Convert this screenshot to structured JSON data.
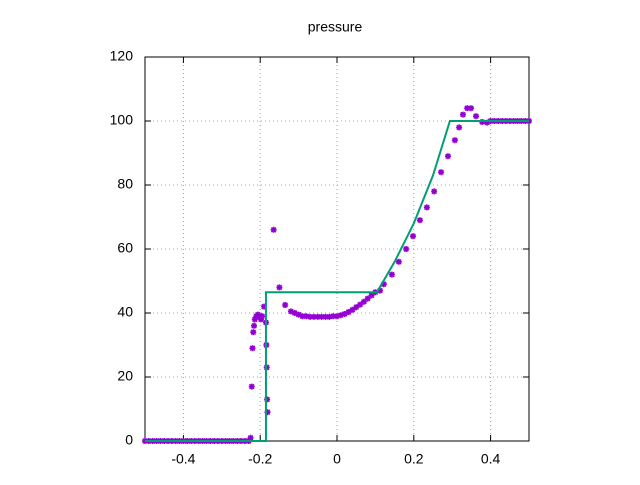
{
  "chart_data": {
    "type": "scatter",
    "title": "pressure",
    "xlim": [
      -0.5,
      0.5
    ],
    "ylim": [
      0,
      120
    ],
    "xticks": [
      -0.4,
      -0.2,
      0,
      0.2,
      0.4
    ],
    "yticks": [
      0,
      20,
      40,
      60,
      80,
      100,
      120
    ],
    "grid": true,
    "series": [
      {
        "type": "scatter",
        "color": "#9400d3",
        "x": [
          -0.5,
          -0.49,
          -0.48,
          -0.47,
          -0.46,
          -0.45,
          -0.44,
          -0.43,
          -0.42,
          -0.41,
          -0.4,
          -0.39,
          -0.38,
          -0.37,
          -0.36,
          -0.35,
          -0.34,
          -0.33,
          -0.32,
          -0.31,
          -0.3,
          -0.29,
          -0.28,
          -0.27,
          -0.26,
          -0.25,
          -0.24,
          -0.23,
          -0.225,
          -0.222,
          -0.22,
          -0.218,
          -0.216,
          -0.214,
          -0.21,
          -0.206,
          -0.202,
          -0.198,
          -0.195,
          -0.19,
          -0.185,
          -0.184,
          -0.183,
          -0.182,
          -0.181,
          -0.165,
          -0.15,
          -0.135,
          -0.12,
          -0.11,
          -0.1,
          -0.09,
          -0.08,
          -0.07,
          -0.06,
          -0.05,
          -0.04,
          -0.03,
          -0.02,
          -0.01,
          0,
          0.01,
          0.02,
          0.03,
          0.04,
          0.05,
          0.06,
          0.07,
          0.08,
          0.09,
          0.1,
          0.112,
          0.122,
          0.143,
          0.161,
          0.18,
          0.198,
          0.216,
          0.234,
          0.253,
          0.271,
          0.289,
          0.307,
          0.318,
          0.328,
          0.339,
          0.349,
          0.362,
          0.378,
          0.391,
          0.4,
          0.41,
          0.42,
          0.43,
          0.44,
          0.45,
          0.46,
          0.47,
          0.48,
          0.49,
          0.5
        ],
        "values": [
          0,
          0,
          0,
          0,
          0,
          0,
          0,
          0,
          0,
          0,
          0,
          0,
          0,
          0,
          0,
          0,
          0,
          0,
          0,
          0,
          0,
          0,
          0,
          0,
          0,
          0,
          0,
          0,
          1,
          17,
          29,
          34,
          36,
          38,
          39,
          39.5,
          39,
          38,
          39,
          42,
          37,
          30,
          23,
          13,
          9,
          66,
          48,
          42.5,
          40.5,
          40,
          39.5,
          39,
          39,
          38.8,
          38.8,
          38.8,
          38.8,
          38.8,
          38.8,
          39,
          39,
          39.3,
          39.7,
          40.3,
          41,
          41.8,
          42.6,
          43.5,
          44.5,
          45.5,
          46.5,
          47,
          49,
          52,
          56,
          60,
          64,
          69,
          73,
          78,
          84,
          89,
          94,
          98,
          102,
          104,
          104,
          101.5,
          99.7,
          99.5,
          100,
          100,
          100,
          100,
          100,
          100,
          100,
          100,
          100,
          100,
          100
        ]
      },
      {
        "type": "line",
        "color": "#009e73",
        "x": [
          -0.5,
          -0.185,
          -0.185,
          0.104,
          0.15,
          0.2,
          0.25,
          0.294,
          0.5
        ],
        "values": [
          0,
          0,
          46.5,
          46.5,
          56,
          68,
          83,
          100,
          100
        ]
      }
    ]
  }
}
